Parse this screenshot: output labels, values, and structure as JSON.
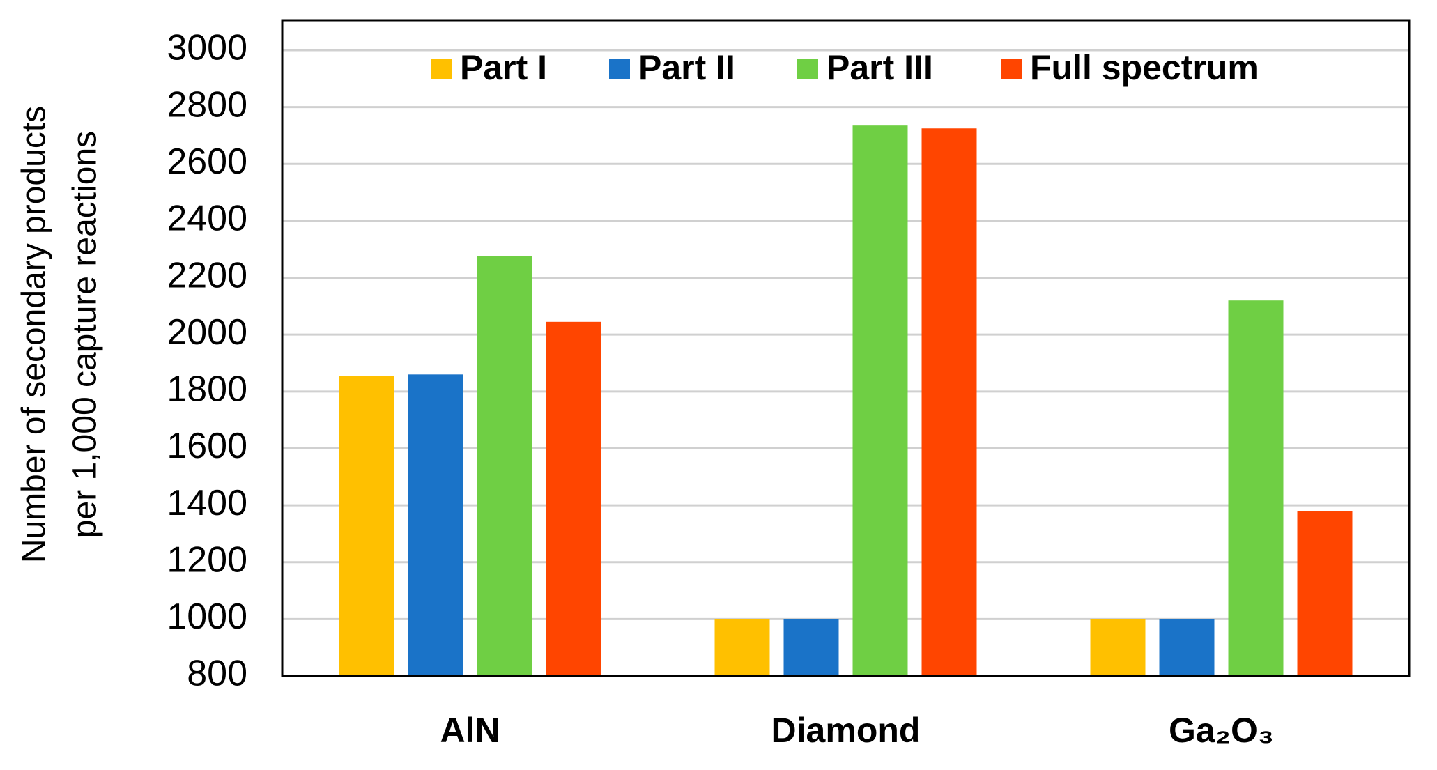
{
  "chart_data": {
    "type": "bar",
    "y_label": [
      "Number of secondary products",
      "per 1,000 capture reactions"
    ],
    "categories": [
      "AlN",
      "Diamond",
      "Ga₂O₃"
    ],
    "series": [
      {
        "name": "Part I",
        "color": "#ffc000",
        "values": [
          1855,
          1000,
          1000
        ]
      },
      {
        "name": "Part II",
        "color": "#1a73c8",
        "values": [
          1860,
          1000,
          1000
        ]
      },
      {
        "name": "Part III",
        "color": "#6fcf44",
        "values": [
          2275,
          2735,
          2120
        ]
      },
      {
        "name": "Full spectrum",
        "color": "#ff4500",
        "values": [
          2045,
          2725,
          1380
        ]
      }
    ],
    "ylim": [
      800,
      3000
    ],
    "yticks": [
      800,
      1000,
      1200,
      1400,
      1600,
      1800,
      2000,
      2200,
      2400,
      2600,
      2800,
      3000
    ],
    "grid": true,
    "legend": "top"
  }
}
